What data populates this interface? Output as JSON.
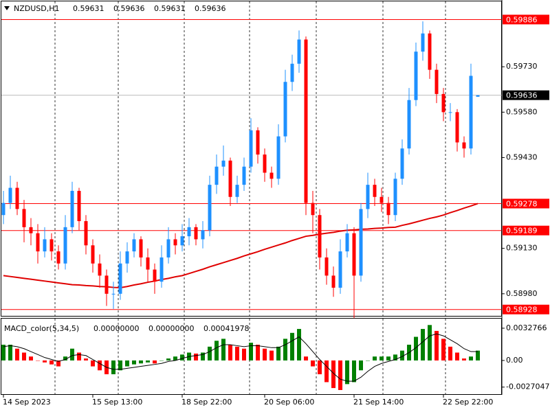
{
  "header": {
    "symbol": "NZDUSD,H1",
    "ohlc": [
      0.59631,
      0.59636,
      0.59631,
      0.59636
    ]
  },
  "chart_data": [
    {
      "type": "candlestick",
      "categories": [
        "14 Sep 2023",
        null,
        null,
        null,
        null,
        null,
        null,
        null,
        null,
        null,
        null,
        null,
        null,
        "15 Sep 13:00",
        null,
        null,
        null,
        null,
        null,
        null,
        null,
        null,
        null,
        null,
        null,
        null,
        "18 Sep 22:00",
        null,
        null,
        null,
        null,
        null,
        null,
        null,
        null,
        null,
        null,
        null,
        "20 Sep 06:00",
        null,
        null,
        null,
        null,
        null,
        null,
        null,
        null,
        null,
        null,
        null,
        null,
        "21 Sep 14:00",
        null,
        null,
        null,
        null,
        null,
        null,
        null,
        null,
        null,
        null,
        null,
        null,
        "22 Sep 22:00",
        null,
        null,
        null,
        null,
        null
      ],
      "open": [
        0.5924,
        0.5928,
        0.5933,
        0.5926,
        0.592,
        0.5918,
        0.5912,
        0.5916,
        0.5912,
        0.5908,
        0.592,
        0.5932,
        0.5922,
        0.5914,
        0.5908,
        0.5904,
        0.5898,
        0.5898,
        0.5908,
        0.5912,
        0.5916,
        0.591,
        0.5906,
        0.5902,
        0.591,
        0.5916,
        0.5914,
        0.5917,
        0.592,
        0.5916,
        0.5919,
        0.5934,
        0.594,
        0.5942,
        0.593,
        0.5934,
        0.594,
        0.5952,
        0.5944,
        0.5938,
        0.5936,
        0.595,
        0.5968,
        0.5974,
        0.5982,
        0.5928,
        0.5924,
        0.591,
        0.5904,
        0.59,
        0.5912,
        0.5918,
        0.5904,
        0.5926,
        0.5934,
        0.593,
        0.5928,
        0.5924,
        0.5936,
        0.5946,
        0.5962,
        0.5978,
        0.5984,
        0.5972,
        0.5964,
        0.5958,
        0.5958,
        0.5948,
        0.5946,
        0.59631
      ],
      "high": [
        0.5932,
        0.5937,
        0.5935,
        0.5929,
        0.5923,
        0.5921,
        0.592,
        0.5918,
        0.5914,
        0.5924,
        0.5935,
        0.5933,
        0.5924,
        0.5916,
        0.5911,
        0.5906,
        0.5902,
        0.5912,
        0.5915,
        0.5918,
        0.5917,
        0.5913,
        0.5908,
        0.5914,
        0.592,
        0.5918,
        0.5921,
        0.5923,
        0.5921,
        0.5922,
        0.5937,
        0.5944,
        0.5947,
        0.5943,
        0.5937,
        0.5943,
        0.5956,
        0.5953,
        0.5946,
        0.594,
        0.5954,
        0.5972,
        0.5977,
        0.5985,
        0.5983,
        0.5932,
        0.5926,
        0.5913,
        0.5907,
        0.5916,
        0.5921,
        0.592,
        0.5928,
        0.5938,
        0.5936,
        0.5933,
        0.593,
        0.5938,
        0.5949,
        0.5966,
        0.5981,
        0.5988,
        0.5985,
        0.5974,
        0.5966,
        0.5961,
        0.5959,
        0.595,
        0.5974,
        0.59636
      ],
      "low": [
        0.5921,
        0.5926,
        0.5924,
        0.5915,
        0.5914,
        0.5908,
        0.591,
        0.5909,
        0.5906,
        0.5906,
        0.5918,
        0.5919,
        0.5911,
        0.5905,
        0.59,
        0.5894,
        0.5893,
        0.5896,
        0.5905,
        0.591,
        0.5907,
        0.5902,
        0.5898,
        0.59,
        0.5908,
        0.5911,
        0.5912,
        0.5914,
        0.5914,
        0.5913,
        0.5917,
        0.5931,
        0.5937,
        0.5927,
        0.5928,
        0.5932,
        0.5938,
        0.5941,
        0.5935,
        0.5933,
        0.5934,
        0.5948,
        0.5965,
        0.5971,
        0.5924,
        0.5918,
        0.5906,
        0.5901,
        0.5897,
        0.5898,
        0.591,
        0.589,
        0.5902,
        0.5923,
        0.5927,
        0.5925,
        0.5921,
        0.5922,
        0.5934,
        0.5944,
        0.596,
        0.5975,
        0.5969,
        0.5961,
        0.5955,
        0.5955,
        0.5945,
        0.5943,
        0.5944,
        0.59631
      ],
      "close": [
        0.5928,
        0.5933,
        0.5926,
        0.592,
        0.5918,
        0.5912,
        0.5916,
        0.5912,
        0.5908,
        0.592,
        0.5932,
        0.5922,
        0.5914,
        0.5908,
        0.5904,
        0.5898,
        0.5898,
        0.5908,
        0.5912,
        0.5916,
        0.591,
        0.5906,
        0.5902,
        0.591,
        0.5916,
        0.5914,
        0.5917,
        0.592,
        0.5916,
        0.5919,
        0.5934,
        0.594,
        0.5942,
        0.593,
        0.5934,
        0.594,
        0.5952,
        0.5944,
        0.5938,
        0.5936,
        0.595,
        0.5968,
        0.5974,
        0.5982,
        0.5928,
        0.5924,
        0.591,
        0.5904,
        0.59,
        0.5912,
        0.5918,
        0.5904,
        0.5926,
        0.5934,
        0.593,
        0.5928,
        0.5924,
        0.5936,
        0.5946,
        0.5962,
        0.5978,
        0.5984,
        0.5972,
        0.5964,
        0.5958,
        0.5958,
        0.5948,
        0.5946,
        0.597,
        0.59636
      ],
      "up_color": "#1e90ff",
      "down_color": "#ff0000",
      "ma": {
        "color": "#e00000",
        "values": [
          0.5904,
          0.59037,
          0.59034,
          0.59031,
          0.59028,
          0.59025,
          0.59022,
          0.59019,
          0.59016,
          0.59013,
          0.5901,
          0.59009,
          0.59007,
          0.59006,
          0.59004,
          0.59003,
          0.59001,
          0.59,
          0.59004,
          0.59009,
          0.59013,
          0.59018,
          0.59022,
          0.59027,
          0.59031,
          0.59036,
          0.5904,
          0.59047,
          0.59054,
          0.59061,
          0.59069,
          0.59076,
          0.59083,
          0.5909,
          0.59097,
          0.59105,
          0.59112,
          0.59119,
          0.59127,
          0.59134,
          0.59141,
          0.59148,
          0.59156,
          0.59163,
          0.5917,
          0.59173,
          0.59177,
          0.5918,
          0.59183,
          0.59187,
          0.5919,
          0.59191,
          0.59193,
          0.59194,
          0.59196,
          0.59197,
          0.59199,
          0.592,
          0.59206,
          0.59211,
          0.59217,
          0.59223,
          0.59229,
          0.59234,
          0.5924,
          0.59248,
          0.59255,
          0.59263,
          0.5927,
          0.59278
        ]
      },
      "levels": [
        0.59886,
        0.59278,
        0.59189,
        0.58928
      ],
      "level_color": "#ff0000",
      "last_price": 0.59636,
      "ylim": [
        0.58907,
        0.59946
      ],
      "yticks": [
        {
          "value": 0.5973,
          "label": "0.59730"
        },
        {
          "value": 0.5958,
          "label": "0.59580"
        },
        {
          "value": 0.5943,
          "label": "0.59430"
        },
        {
          "value": 0.5913,
          "label": "0.59130"
        },
        {
          "value": 0.5898,
          "label": "0.58980"
        }
      ]
    },
    {
      "type": "macd",
      "title": "MACD_color(5,34,5)",
      "readout": [
        {
          "value": 0,
          "label": "0.00000000"
        },
        {
          "value": 0,
          "label": "0.00000000"
        },
        0.00041978
      ],
      "values": [
        0.0016,
        0.0016,
        0.0012,
        0.0008,
        0.0004,
        0.0,
        -0.0002,
        -0.0004,
        -0.0006,
        0.0004,
        0.0012,
        0.0008,
        0.0002,
        -0.0006,
        -0.001,
        -0.0014,
        -0.0014,
        -0.001,
        -0.0006,
        -0.0004,
        -0.0003,
        -0.0002,
        -0.0003,
        0.0,
        0.0002,
        0.0004,
        0.0006,
        0.0008,
        0.0007,
        0.0008,
        0.0014,
        0.002,
        0.0022,
        0.0016,
        0.0014,
        0.0012,
        0.0018,
        0.0016,
        0.0012,
        0.001,
        0.0014,
        0.0022,
        0.0028,
        0.0032,
        0.0004,
        -0.0006,
        -0.0014,
        -0.0022,
        -0.0028,
        -0.003,
        -0.0024,
        -0.0022,
        -0.001,
        0.0,
        0.0004,
        0.0004,
        0.0004,
        0.0006,
        0.001,
        0.0016,
        0.0024,
        0.0032,
        0.0036,
        0.003,
        0.0022,
        0.0014,
        0.0008,
        0.0002,
        0.0004,
        0.001
      ],
      "signal": [
        0.0014,
        0.0015,
        0.0014,
        0.0012,
        0.0009,
        0.0006,
        0.0003,
        0.0001,
        -0.0001,
        0.0001,
        0.0005,
        0.0006,
        0.0005,
        0.0001,
        -0.0003,
        -0.0007,
        -0.0009,
        -0.0009,
        -0.0008,
        -0.0007,
        -0.0006,
        -0.0005,
        -0.0004,
        -0.0003,
        -0.0001,
        0.0,
        0.0002,
        0.0004,
        0.0005,
        0.0006,
        0.0009,
        0.0013,
        0.0016,
        0.0016,
        0.0015,
        0.0014,
        0.0015,
        0.0015,
        0.0014,
        0.0013,
        0.0013,
        0.0016,
        0.002,
        0.0024,
        0.0017,
        0.0009,
        0.0001,
        -0.0006,
        -0.0013,
        -0.0019,
        -0.0021,
        -0.0021,
        -0.0017,
        -0.0011,
        -0.0006,
        -0.0003,
        -0.0001,
        0.0001,
        0.0004,
        0.0008,
        0.0013,
        0.0019,
        0.0025,
        0.0027,
        0.0025,
        0.0021,
        0.0017,
        0.0012,
        0.0009,
        0.0009
      ],
      "up_color": "#008000",
      "down_color": "#ff0000",
      "signal_color": "#000000",
      "ylim": [
        -0.00342,
        0.00425
      ],
      "yticks": [
        0.0032766,
        {
          "value": 0,
          "label": "0.00"
        },
        -0.0027047
      ]
    }
  ]
}
